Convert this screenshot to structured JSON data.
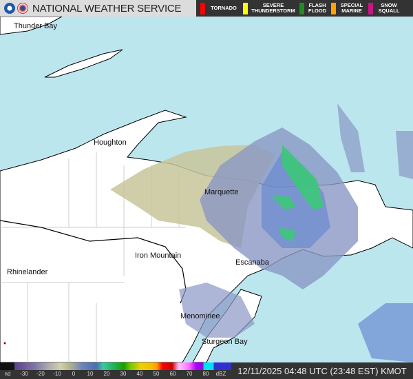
{
  "header": {
    "title": "NATIONAL WEATHER SERVICE",
    "logos": [
      "noaa-logo",
      "nws-logo"
    ]
  },
  "warnings": [
    {
      "label": "TORNADO",
      "color": "#ff0000"
    },
    {
      "label": "SEVERE THUNDERSTORM",
      "color": "#ffff00"
    },
    {
      "label": "FLASH FLOOD",
      "color": "#228b22"
    },
    {
      "label": "SPECIAL MARINE",
      "color": "#ffa500"
    },
    {
      "label": "SNOW SQUALL",
      "color": "#c71585"
    }
  ],
  "places": [
    "Thunder Bay",
    "Houghton",
    "Marquette",
    "Iron Mountain",
    "Rhinelander",
    "Escanaba",
    "Menominee",
    "Sturgeon Bay"
  ],
  "legend": {
    "ticks": [
      "nd",
      "-30",
      "-20",
      "-10",
      "0",
      "10",
      "20",
      "30",
      "40",
      "50",
      "60",
      "70",
      "80",
      "dBZ"
    ]
  },
  "timestamp": "12/11/2025 04:48 UTC (23:48 EST) KMOT",
  "colors": {
    "water": "#bce6ee",
    "land": "#ffffff"
  }
}
